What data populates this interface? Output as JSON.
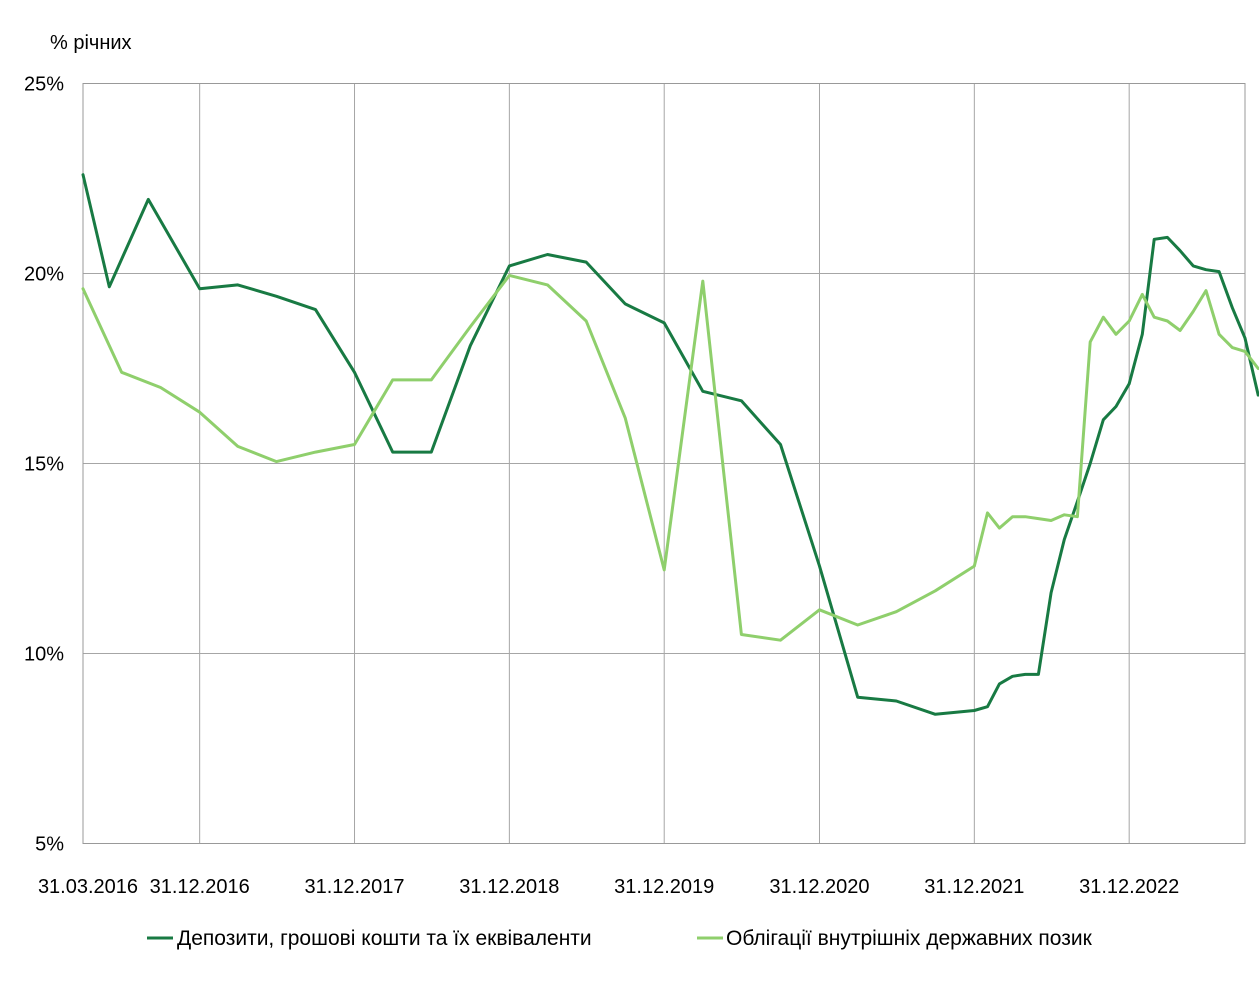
{
  "chart_data": {
    "type": "line",
    "unit_label": "% річних",
    "ylim": [
      5,
      25
    ],
    "yticks": [
      {
        "value": 25,
        "label": "25%"
      },
      {
        "value": 20,
        "label": "20%"
      },
      {
        "value": 15,
        "label": "15%"
      },
      {
        "value": 10,
        "label": "10%"
      },
      {
        "value": 5,
        "label": "5%"
      }
    ],
    "xlim": [
      "2016-03-31",
      "2023-09-30"
    ],
    "xticks": [
      {
        "date": "2016-03-31",
        "label": "31.03.2016"
      },
      {
        "date": "2016-12-31",
        "label": "31.12.2016"
      },
      {
        "date": "2017-12-31",
        "label": "31.12.2017"
      },
      {
        "date": "2018-12-31",
        "label": "31.12.2018"
      },
      {
        "date": "2019-12-31",
        "label": "31.12.2019"
      },
      {
        "date": "2020-12-31",
        "label": "31.12.2020"
      },
      {
        "date": "2021-12-31",
        "label": "31.12.2021"
      },
      {
        "date": "2022-12-31",
        "label": "31.12.2022"
      }
    ],
    "grid": true,
    "legend_position": "bottom",
    "series": [
      {
        "name": "Депозити, грошові кошти та їх еквіваленти",
        "color": "#187a43",
        "points": [
          [
            "2016-03-31",
            22.6
          ],
          [
            "2016-06-01",
            19.65
          ],
          [
            "2016-09-01",
            21.95
          ],
          [
            "2016-12-31",
            19.6
          ],
          [
            "2017-03-31",
            19.7
          ],
          [
            "2017-06-30",
            19.4
          ],
          [
            "2017-09-30",
            19.05
          ],
          [
            "2017-12-31",
            17.4
          ],
          [
            "2018-03-31",
            15.3
          ],
          [
            "2018-06-30",
            15.3
          ],
          [
            "2018-09-30",
            18.1
          ],
          [
            "2018-12-31",
            20.2
          ],
          [
            "2019-03-31",
            20.5
          ],
          [
            "2019-06-30",
            20.3
          ],
          [
            "2019-09-30",
            19.2
          ],
          [
            "2019-12-31",
            18.7
          ],
          [
            "2020-03-31",
            16.9
          ],
          [
            "2020-06-30",
            16.65
          ],
          [
            "2020-09-30",
            15.5
          ],
          [
            "2020-12-31",
            12.3
          ],
          [
            "2021-03-31",
            8.85
          ],
          [
            "2021-06-30",
            8.75
          ],
          [
            "2021-09-30",
            8.4
          ],
          [
            "2021-12-31",
            8.5
          ],
          [
            "2022-01-31",
            8.6
          ],
          [
            "2022-02-28",
            9.2
          ],
          [
            "2022-03-31",
            9.4
          ],
          [
            "2022-04-30",
            9.45
          ],
          [
            "2022-05-31",
            9.45
          ],
          [
            "2022-06-30",
            11.6
          ],
          [
            "2022-07-31",
            13.0
          ],
          [
            "2022-08-31",
            14.0
          ],
          [
            "2022-09-30",
            15.0
          ],
          [
            "2022-10-31",
            16.15
          ],
          [
            "2022-11-30",
            16.5
          ],
          [
            "2022-12-31",
            17.1
          ],
          [
            "2023-01-31",
            18.4
          ],
          [
            "2023-02-28",
            20.9
          ],
          [
            "2023-03-31",
            20.95
          ],
          [
            "2023-04-30",
            20.6
          ],
          [
            "2023-05-31",
            20.2
          ],
          [
            "2023-06-30",
            20.1
          ],
          [
            "2023-07-31",
            20.05
          ],
          [
            "2023-08-31",
            19.1
          ],
          [
            "2023-09-30",
            18.3
          ],
          [
            "2023-10-31",
            16.8
          ]
        ]
      },
      {
        "name": "Облігації внутрішніх державних позик",
        "color": "#8fcf6c",
        "points": [
          [
            "2016-03-31",
            19.6
          ],
          [
            "2016-06-30",
            17.4
          ],
          [
            "2016-09-30",
            17.0
          ],
          [
            "2016-12-31",
            16.35
          ],
          [
            "2017-03-31",
            15.45
          ],
          [
            "2017-06-30",
            15.05
          ],
          [
            "2017-09-30",
            15.3
          ],
          [
            "2017-12-31",
            15.5
          ],
          [
            "2018-03-31",
            17.2
          ],
          [
            "2018-06-30",
            17.2
          ],
          [
            "2018-09-30",
            18.6
          ],
          [
            "2018-12-31",
            19.95
          ],
          [
            "2019-03-31",
            19.7
          ],
          [
            "2019-06-30",
            18.75
          ],
          [
            "2019-09-30",
            16.2
          ],
          [
            "2019-12-31",
            12.2
          ],
          [
            "2020-03-31",
            19.8
          ],
          [
            "2020-06-30",
            10.5
          ],
          [
            "2020-09-30",
            10.35
          ],
          [
            "2020-12-31",
            11.15
          ],
          [
            "2021-03-31",
            10.75
          ],
          [
            "2021-06-30",
            11.1
          ],
          [
            "2021-09-30",
            11.65
          ],
          [
            "2021-12-31",
            12.3
          ],
          [
            "2022-01-31",
            13.7
          ],
          [
            "2022-02-28",
            13.3
          ],
          [
            "2022-03-31",
            13.6
          ],
          [
            "2022-04-30",
            13.6
          ],
          [
            "2022-05-31",
            13.55
          ],
          [
            "2022-06-30",
            13.5
          ],
          [
            "2022-07-31",
            13.65
          ],
          [
            "2022-08-31",
            13.6
          ],
          [
            "2022-09-30",
            18.2
          ],
          [
            "2022-10-31",
            18.85
          ],
          [
            "2022-11-30",
            18.4
          ],
          [
            "2022-12-31",
            18.75
          ],
          [
            "2023-01-31",
            19.45
          ],
          [
            "2023-02-28",
            18.85
          ],
          [
            "2023-03-31",
            18.75
          ],
          [
            "2023-04-30",
            18.5
          ],
          [
            "2023-05-31",
            19.0
          ],
          [
            "2023-06-30",
            19.55
          ],
          [
            "2023-07-31",
            18.4
          ],
          [
            "2023-08-31",
            18.05
          ],
          [
            "2023-09-30",
            17.95
          ],
          [
            "2023-10-31",
            17.5
          ]
        ]
      }
    ]
  }
}
